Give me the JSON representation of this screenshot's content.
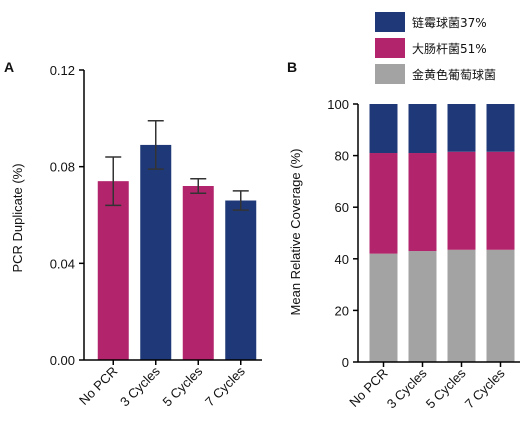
{
  "colors": {
    "navy": "#1f3877",
    "magenta": "#b2246b",
    "gray": "#a3a3a3",
    "error": "#333333"
  },
  "legend": [
    {
      "label": "链霉球菌37%",
      "color": "#1f3877"
    },
    {
      "label": "大肠杆菌51%",
      "color": "#b2246b"
    },
    {
      "label": "金黄色葡萄球菌",
      "color": "#a3a3a3"
    }
  ],
  "chart_data": [
    {
      "panel": "A",
      "type": "bar",
      "ylabel": "PCR Duplicate (%)",
      "categories": [
        "No PCR",
        "3 Cycles",
        "5 Cycles",
        "7 Cycles"
      ],
      "values": [
        0.074,
        0.089,
        0.072,
        0.066
      ],
      "errors": [
        0.01,
        0.01,
        0.003,
        0.004
      ],
      "bar_colors": [
        "#b2246b",
        "#1f3877",
        "#b2246b",
        "#1f3877"
      ],
      "ylim": [
        0,
        0.12
      ],
      "yticks": [
        "0.00",
        "0.04",
        "0.08",
        "0.12"
      ]
    },
    {
      "panel": "B",
      "type": "bar",
      "stacked": true,
      "ylabel": "Mean Relative Coverage (%)",
      "categories": [
        "No PCR",
        "3 Cycles",
        "5 Cycles",
        "7 Cycles"
      ],
      "series": [
        {
          "name": "金黄色葡萄球菌",
          "color": "#a3a3a3",
          "values": [
            42,
            43,
            43.5,
            43.5
          ]
        },
        {
          "name": "大肠杆菌51%",
          "color": "#b2246b",
          "values": [
            39,
            38,
            38,
            38
          ]
        },
        {
          "name": "链霉球菌37%",
          "color": "#1f3877",
          "values": [
            19,
            19,
            18.5,
            18.5
          ]
        }
      ],
      "ylim": [
        0,
        100
      ],
      "yticks": [
        "0",
        "20",
        "40",
        "60",
        "80",
        "100"
      ]
    }
  ]
}
